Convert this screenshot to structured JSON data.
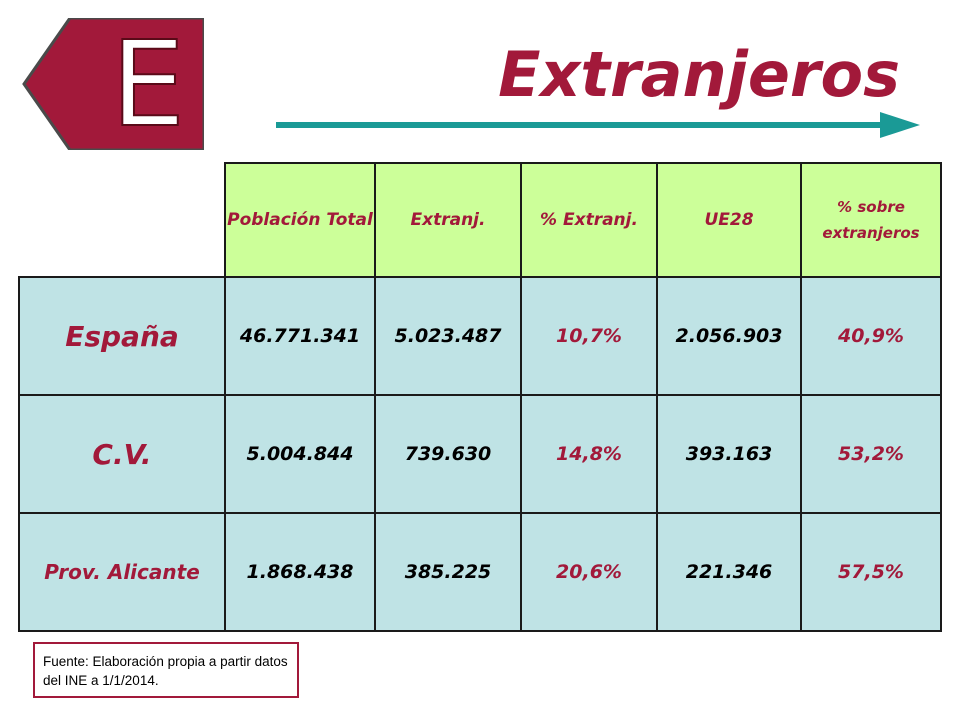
{
  "badge": {
    "letter": "E"
  },
  "title": "Extranjeros",
  "colors": {
    "accent": "#a2193a",
    "header_bg": "#ccff99",
    "cell_bg": "#bfe3e5",
    "arrow": "#1a9a96"
  },
  "table": {
    "headers": [
      "",
      "Población Total",
      "Extranj.",
      "% Extranj.",
      "UE28",
      "% sobre extranjeros"
    ],
    "rows": [
      {
        "label": "España",
        "cells": [
          "46.771.341",
          "5.023.487",
          "10,7%",
          "2.056.903",
          "40,9%"
        ]
      },
      {
        "label": "C.V.",
        "cells": [
          "5.004.844",
          "739.630",
          "14,8%",
          "393.163",
          "53,2%"
        ]
      },
      {
        "label": "Prov. Alicante",
        "cells": [
          "1.868.438",
          "385.225",
          "20,6%",
          "221.346",
          "57,5%"
        ]
      }
    ]
  },
  "source": {
    "text": "Fuente: Elaboración propia a partir datos del INE a 1/1/2014."
  }
}
